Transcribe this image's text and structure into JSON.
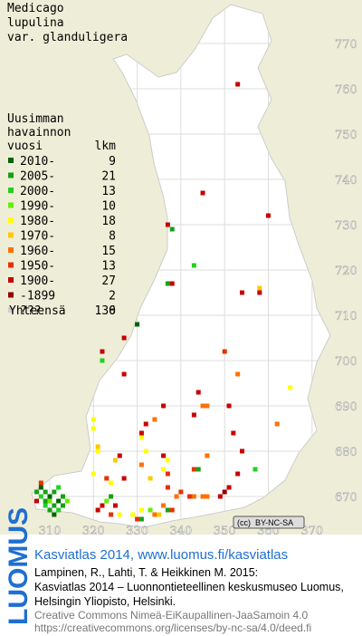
{
  "map": {
    "title": [
      "Medicago",
      "lupulina",
      "var. glanduligera"
    ],
    "legend": {
      "header": [
        "Uusimman",
        "havainnon",
        "vuosi"
      ],
      "count_header": "lkm",
      "rows": [
        {
          "label": "2010-",
          "count": 9,
          "color": "#006400"
        },
        {
          "label": "2005-",
          "count": 21,
          "color": "#16a016"
        },
        {
          "label": "2000-",
          "count": 13,
          "color": "#22d022"
        },
        {
          "label": "1990-",
          "count": 10,
          "color": "#66ee00"
        },
        {
          "label": "1980-",
          "count": 18,
          "color": "#ffff00"
        },
        {
          "label": "1970-",
          "count": 8,
          "color": "#ffc800"
        },
        {
          "label": "1960-",
          "count": 15,
          "color": "#ff7000"
        },
        {
          "label": "1950-",
          "count": 13,
          "color": "#e83000"
        },
        {
          "label": "1900-",
          "count": 27,
          "color": "#c80000"
        },
        {
          "label": "-1899",
          "count": 2,
          "color": "#900000"
        },
        {
          "label": "???",
          "count": 0,
          "color": "#cccccc"
        }
      ],
      "total_label": "Yhteensä",
      "total": 136
    },
    "xticks": [
      310,
      320,
      330,
      340,
      350,
      360,
      370
    ],
    "yticks": [
      670,
      680,
      690,
      700,
      710,
      720,
      730,
      740,
      750,
      760,
      770
    ],
    "points": [
      [
        353,
        761,
        8
      ],
      [
        345,
        737,
        8
      ],
      [
        360,
        732,
        8
      ],
      [
        337,
        730,
        8
      ],
      [
        338,
        729,
        1
      ],
      [
        343,
        721,
        2
      ],
      [
        337,
        717,
        1
      ],
      [
        338,
        717,
        8
      ],
      [
        358,
        716,
        5
      ],
      [
        358,
        715,
        8
      ],
      [
        354,
        715,
        8
      ],
      [
        330,
        708,
        0
      ],
      [
        327,
        705,
        8
      ],
      [
        322,
        702,
        8
      ],
      [
        322,
        700,
        2
      ],
      [
        327,
        697,
        8
      ],
      [
        350,
        702,
        7
      ],
      [
        353,
        697,
        6
      ],
      [
        365,
        694,
        4
      ],
      [
        344,
        693,
        8
      ],
      [
        345,
        690,
        6
      ],
      [
        346,
        690,
        6
      ],
      [
        336,
        690,
        8
      ],
      [
        351,
        690,
        8
      ],
      [
        332,
        686,
        8
      ],
      [
        334,
        687,
        6
      ],
      [
        343,
        688,
        8
      ],
      [
        352,
        684,
        8
      ],
      [
        362,
        686,
        6
      ],
      [
        320,
        687,
        4
      ],
      [
        320,
        685,
        4
      ],
      [
        331,
        684,
        8
      ],
      [
        331,
        683,
        4
      ],
      [
        321,
        681,
        5
      ],
      [
        326,
        679,
        8
      ],
      [
        332,
        680,
        4
      ],
      [
        336,
        679,
        8
      ],
      [
        337,
        678,
        4
      ],
      [
        321,
        680,
        4
      ],
      [
        325,
        678,
        5
      ],
      [
        346,
        679,
        6
      ],
      [
        354,
        680,
        8
      ],
      [
        357,
        676,
        2
      ],
      [
        336,
        676,
        4
      ],
      [
        337,
        675,
        7
      ],
      [
        343,
        676,
        7
      ],
      [
        344,
        676,
        1
      ],
      [
        353,
        675,
        8
      ],
      [
        320,
        675,
        4
      ],
      [
        331,
        677,
        6
      ],
      [
        327,
        674,
        8
      ],
      [
        333,
        674,
        5
      ],
      [
        323,
        674,
        7
      ],
      [
        324,
        673,
        4
      ],
      [
        337,
        672,
        7
      ],
      [
        339,
        670,
        6
      ],
      [
        340,
        671,
        7
      ],
      [
        342,
        670,
        7
      ],
      [
        343,
        670,
        6
      ],
      [
        345,
        670,
        6
      ],
      [
        346,
        670,
        6
      ],
      [
        349,
        670,
        8
      ],
      [
        350,
        671,
        9
      ],
      [
        351,
        672,
        8
      ],
      [
        324,
        670,
        1
      ],
      [
        323,
        669,
        3
      ],
      [
        322,
        668,
        8
      ],
      [
        325,
        668,
        8
      ],
      [
        324,
        666,
        7
      ],
      [
        326,
        666,
        4
      ],
      [
        333,
        667,
        3
      ],
      [
        334,
        666,
        6
      ],
      [
        331,
        667,
        4
      ],
      [
        335,
        666,
        5
      ],
      [
        336,
        668,
        6
      ],
      [
        330,
        665,
        7
      ],
      [
        331,
        665,
        1
      ],
      [
        329,
        666,
        4
      ],
      [
        321,
        667,
        8
      ],
      [
        337,
        667,
        1
      ],
      [
        338,
        667,
        7
      ],
      [
        307,
        671,
        1
      ],
      [
        308,
        672,
        0
      ],
      [
        309,
        671,
        1
      ],
      [
        310,
        670,
        0
      ],
      [
        311,
        671,
        1
      ],
      [
        312,
        672,
        2
      ],
      [
        308,
        670,
        2
      ],
      [
        309,
        669,
        1
      ],
      [
        310,
        669,
        3
      ],
      [
        311,
        668,
        1
      ],
      [
        312,
        669,
        0
      ],
      [
        313,
        670,
        1
      ],
      [
        307,
        669,
        8
      ],
      [
        309,
        668,
        2
      ],
      [
        310,
        667,
        1
      ],
      [
        312,
        667,
        2
      ],
      [
        311,
        666,
        0
      ],
      [
        313,
        668,
        1
      ],
      [
        314,
        669,
        3
      ],
      [
        308,
        673,
        7
      ]
    ],
    "license_badge": "BY-NC-SA",
    "footer": {
      "logo": "LUOMUS",
      "headline": "Kasviatlas 2014, www.luomus.fi/kasviatlas",
      "citation": [
        "Lampinen, R., Lahti, T. & Heikkinen M. 2015:",
        "Kasviatlas 2014 – Luonnontieteellinen keskusmuseo Luomus,",
        "Helsingin Yliopisto, Helsinki."
      ],
      "license": [
        "Creative Commons Nimeä-EiKaupallinen-JaaSamoin 4.0",
        "https://creativecommons.org/licenses/by-nc-sa/4.0/deed.fi"
      ]
    }
  }
}
